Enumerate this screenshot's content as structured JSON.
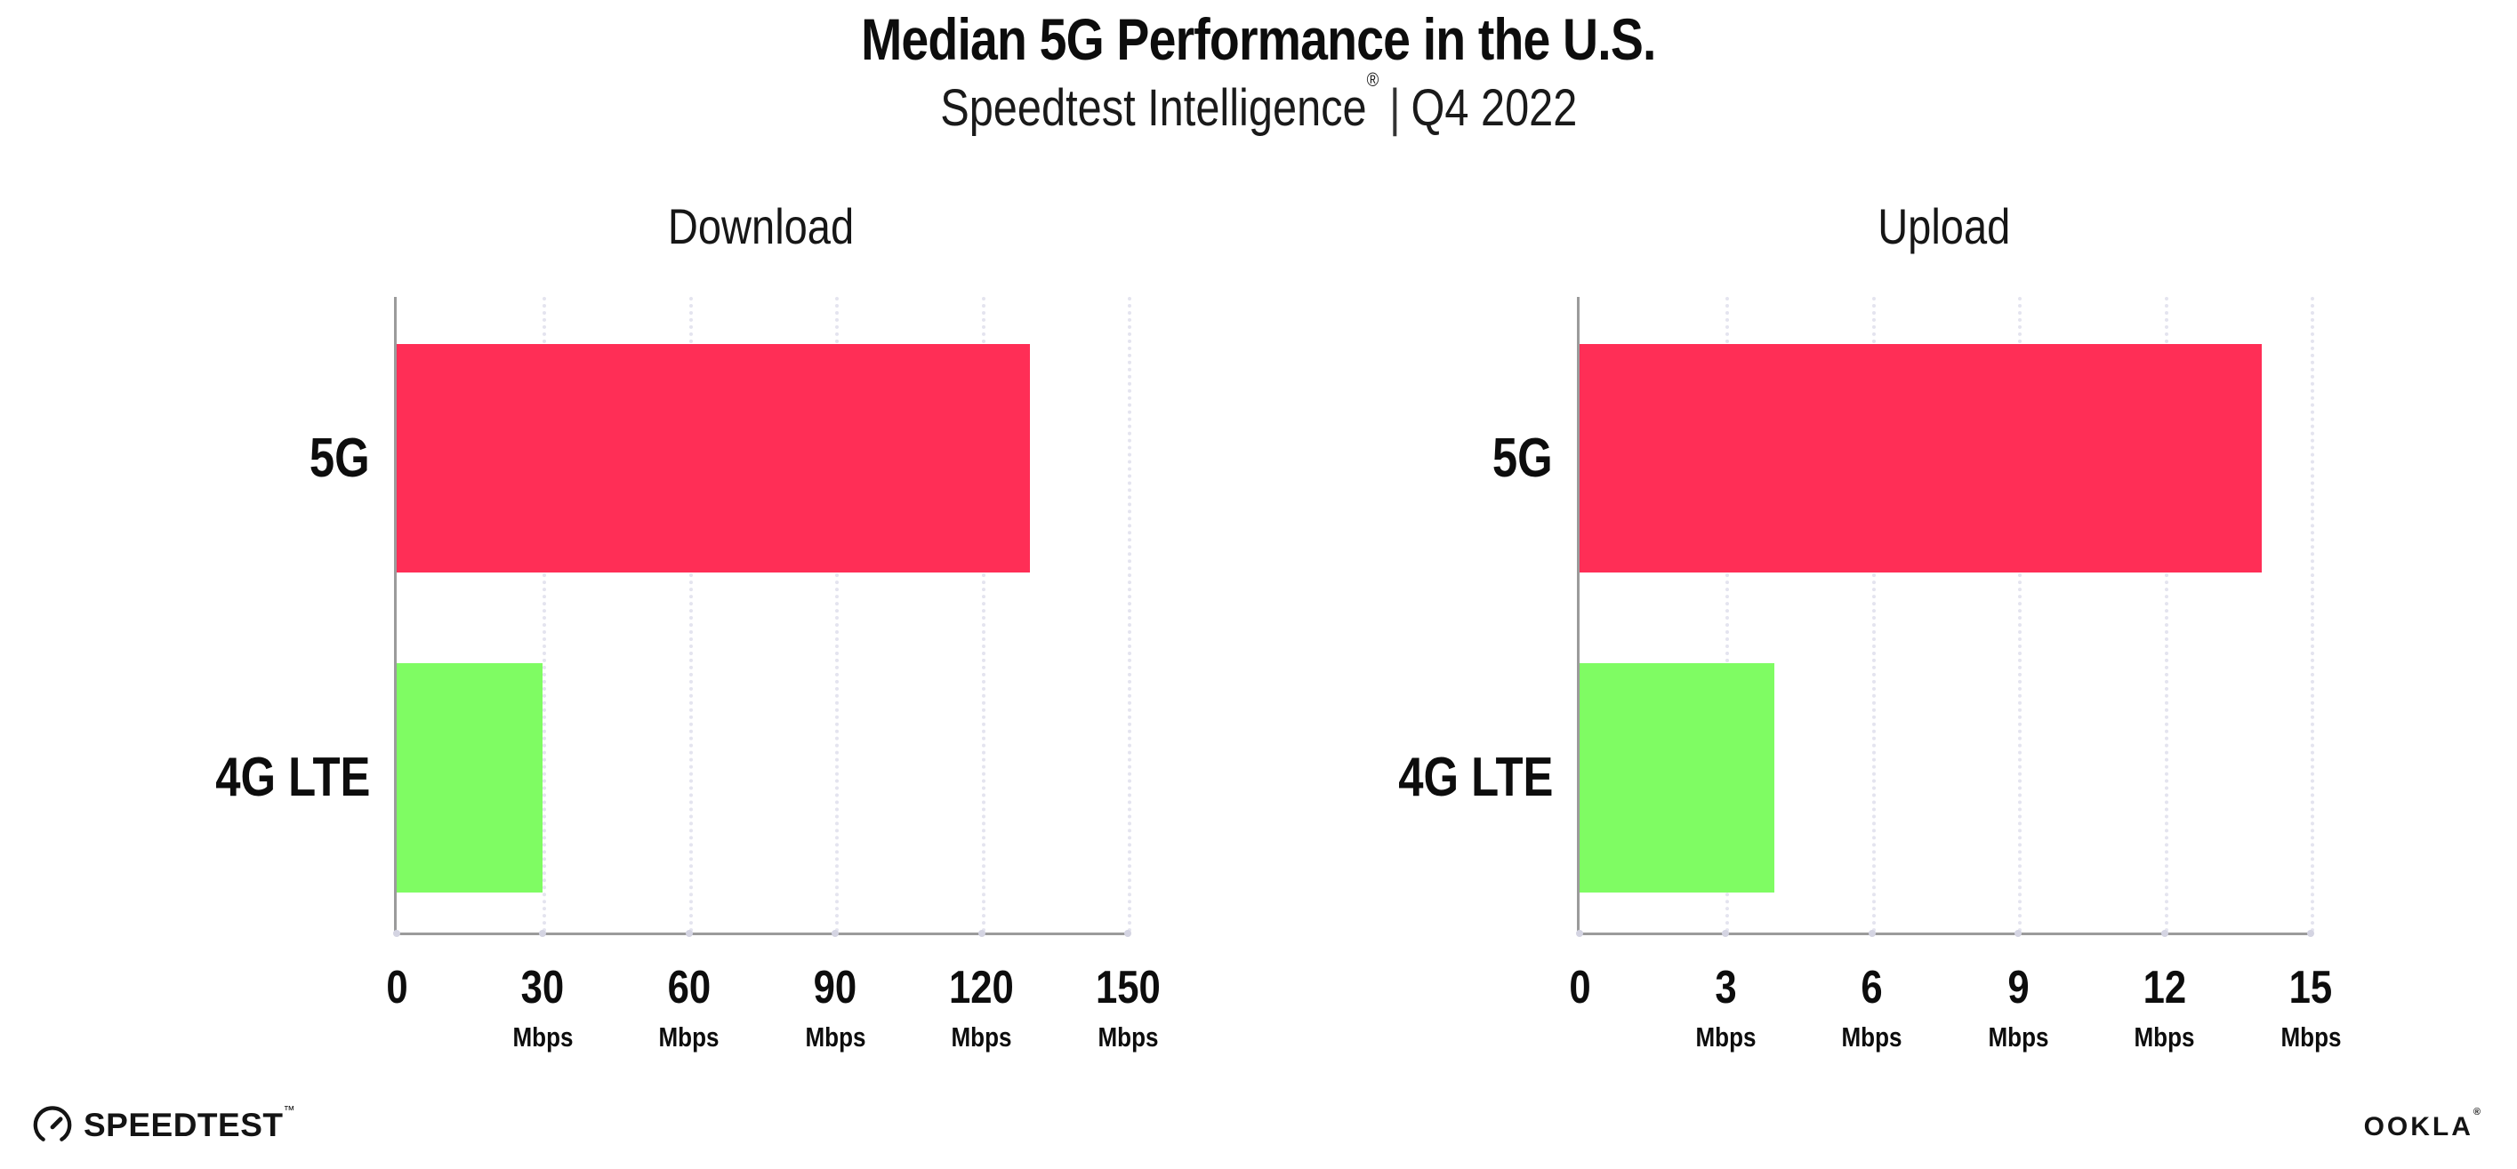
{
  "header": {
    "title": "Median 5G Performance in the U.S.",
    "subtitle_product": "Speedtest Intelligence",
    "subtitle_reg": "®",
    "subtitle_separator": "|",
    "subtitle_period": "Q4 2022"
  },
  "footer": {
    "speedtest_label": "SPEEDTEST",
    "speedtest_tm": "™",
    "ookla_label": "OOKLA",
    "ookla_reg": "®"
  },
  "colors": {
    "bar_5g": "#ff2e56",
    "bar_4g_lte": "#7ffc63",
    "gridline": "#e4e4ef",
    "axis": "#9b9b9b",
    "text": "#0d0d0d"
  },
  "chart_data": [
    {
      "type": "bar",
      "orientation": "horizontal",
      "title": "Download",
      "categories": [
        "5G",
        "4G LTE"
      ],
      "values": [
        130,
        30
      ],
      "bar_colors": [
        "#ff2e56",
        "#7ffc63"
      ],
      "unit": "Mbps",
      "xlim": [
        0,
        150
      ],
      "xticks": [
        0,
        30,
        60,
        90,
        120,
        150
      ],
      "grid": "dotted-vertical",
      "legend": "none"
    },
    {
      "type": "bar",
      "orientation": "horizontal",
      "title": "Upload",
      "categories": [
        "5G",
        "4G LTE"
      ],
      "values": [
        14,
        4
      ],
      "bar_colors": [
        "#ff2e56",
        "#7ffc63"
      ],
      "unit": "Mbps",
      "xlim": [
        0,
        15
      ],
      "xticks": [
        0,
        3,
        6,
        9,
        12,
        15
      ],
      "grid": "dotted-vertical",
      "legend": "none"
    }
  ]
}
